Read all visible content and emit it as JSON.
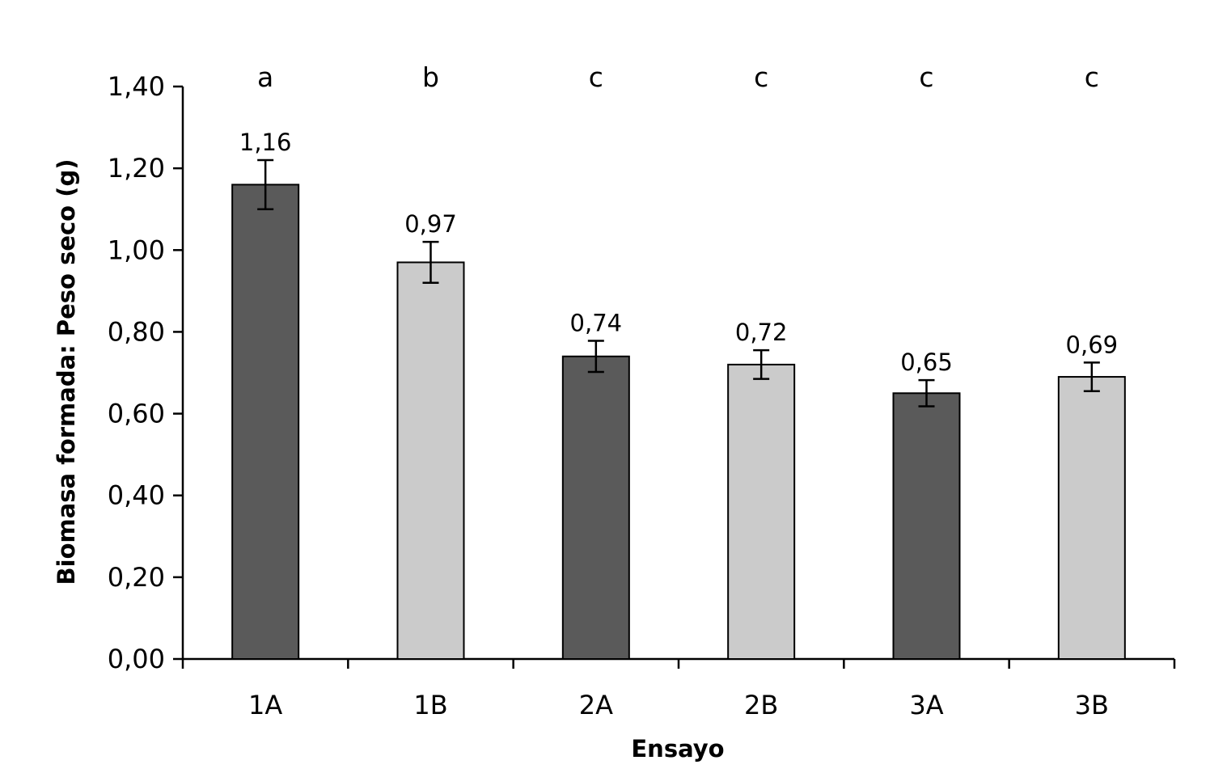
{
  "chart_data": {
    "type": "bar",
    "categories": [
      "1A",
      "1B",
      "2A",
      "2B",
      "3A",
      "3B"
    ],
    "values": [
      1.16,
      0.97,
      0.74,
      0.72,
      0.65,
      0.69
    ],
    "value_labels": [
      "1,16",
      "0,97",
      "0,74",
      "0,72",
      "0,65",
      "0,69"
    ],
    "errors": [
      0.06,
      0.05,
      0.038,
      0.035,
      0.032,
      0.035
    ],
    "significance_letters": [
      "a",
      "b",
      "c",
      "c",
      "c",
      "c"
    ],
    "bar_colors": [
      "#5a5a5a",
      "#cbcbcb",
      "#5a5a5a",
      "#cbcbcb",
      "#5a5a5a",
      "#cbcbcb"
    ],
    "ylim": [
      0,
      1.4
    ],
    "yticks": [
      0,
      0.2,
      0.4,
      0.6,
      0.8,
      1.0,
      1.2,
      1.4
    ],
    "ytick_labels": [
      "0,00",
      "0,20",
      "0,40",
      "0,60",
      "0,80",
      "1,00",
      "1,20",
      "1,40"
    ],
    "xlabel": "Ensayo",
    "ylabel": "Biomasa formada: Peso seco (g)",
    "title": "",
    "grid": false,
    "legend": false
  }
}
